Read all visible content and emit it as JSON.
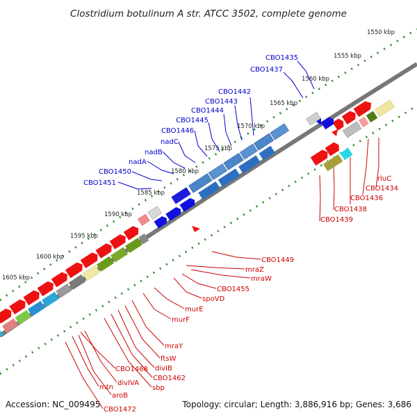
{
  "title": "Clostridium botulinum A str. ATCC 3502, complete genome",
  "footer": {
    "accession": "Accession: NC_009495",
    "summary": "Topology: circular; Length: 3,886,916 bp; Genes: 3,686"
  },
  "colors": {
    "backbone": "#777777",
    "tick": "#2a8a2a",
    "blue_label": "#0000cc",
    "red_label": "#cc0000"
  },
  "kbp_labels": [
    "1550 kbp",
    "1555 kbp",
    "1560 kbp",
    "1565 kbp",
    "1570 kbp",
    "1575 kbp",
    "1580 kbp",
    "1585 kbp",
    "1590 kbp",
    "1595 kbp",
    "1600 kbp",
    "1605 kbp"
  ],
  "blue_labels": [
    "CBO1435",
    "CBO1437",
    "CBO1442",
    "CBO1443",
    "CBO1444",
    "CBO1445",
    "CBO1446",
    "nadC",
    "nadB",
    "nadA",
    "CBO1450",
    "CBO1451"
  ],
  "red_labels_upper": [
    "rluC",
    "CBO1434",
    "CBO1436",
    "CBO1438",
    "CBO1439"
  ],
  "red_labels_lower": [
    "CBO1449",
    "mraZ",
    "mraW",
    "CBO1455",
    "spoVD",
    "murE",
    "murF",
    "mraY",
    "ftsW",
    "divIB",
    "CBO1462",
    "sbp",
    "CBO1468",
    "divIVA",
    "mtn",
    "aroB",
    "CBO1472"
  ]
}
